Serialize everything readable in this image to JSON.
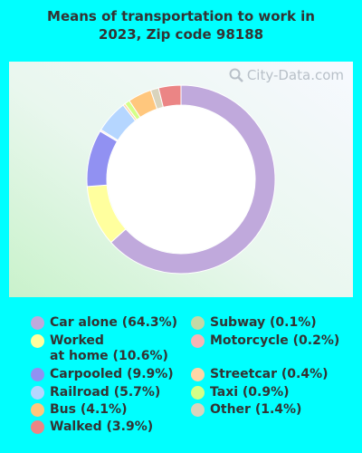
{
  "chart_data": {
    "type": "pie",
    "title": "Means of transportation to work in\n2023, Zip code 98188",
    "watermark": "City-Data.com",
    "slices": [
      {
        "label": "Car alone (64.3%)",
        "value": 64.3,
        "color": "#c0a9dc"
      },
      {
        "label": "Worked\nat home (10.6%)",
        "value": 10.6,
        "color": "#ffff9e"
      },
      {
        "label": "Carpooled (9.9%)",
        "value": 9.9,
        "color": "#9191f2"
      },
      {
        "label": "Subway (0.1%)",
        "value": 0.1,
        "color": "#c3d9a6"
      },
      {
        "label": "Motorcycle (0.2%)",
        "value": 0.2,
        "color": "#f5b5b5"
      },
      {
        "label": "Railroad (5.7%)",
        "value": 5.7,
        "color": "#b5d6ff"
      },
      {
        "label": "Streetcar (0.4%)",
        "value": 0.4,
        "color": "#ffd6a6"
      },
      {
        "label": "Taxi (0.9%)",
        "value": 0.9,
        "color": "#d4ff87"
      },
      {
        "label": "Bus (4.1%)",
        "value": 4.1,
        "color": "#ffc77d"
      },
      {
        "label": "Other (1.4%)",
        "value": 1.4,
        "color": "#d9d4bd"
      },
      {
        "label": "Walked (3.9%)",
        "value": 3.9,
        "color": "#eb8585"
      }
    ],
    "legend_position": "bottom"
  }
}
